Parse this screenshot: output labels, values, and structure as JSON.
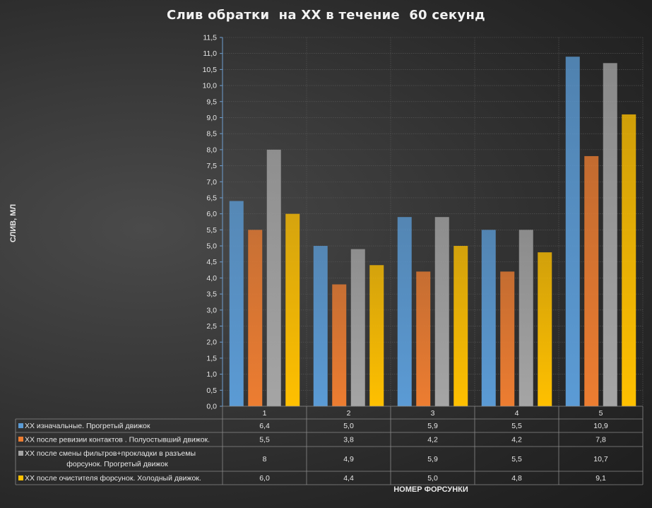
{
  "chart_data": {
    "type": "bar",
    "title": "Слив обратки  на ХХ в течение  60 секунд",
    "xlabel": "НОМЕР ФОРСУНКИ",
    "ylabel": "СЛИВ, МЛ",
    "ylim": [
      0,
      11.5
    ],
    "ystep": 0.5,
    "grid": true,
    "legend_placement": "data-table-left",
    "categories": [
      "1",
      "2",
      "3",
      "4",
      "5"
    ],
    "series": [
      {
        "name": "ХХ изначальные. Прогретый движок",
        "name_lines": [
          "ХХ изначальные. Прогретый движок"
        ],
        "color": "#5b9bd5",
        "values": [
          6.4,
          5.0,
          5.9,
          5.5,
          10.9
        ],
        "labels": [
          "6,4",
          "5,0",
          "5,9",
          "5,5",
          "10,9"
        ]
      },
      {
        "name": "ХХ после ревизии контактов . Полуостывший движок.",
        "name_lines": [
          "ХХ после ревизии контактов . Полуостывший движок."
        ],
        "color": "#ed7d31",
        "values": [
          5.5,
          3.8,
          4.2,
          4.2,
          7.8
        ],
        "labels": [
          "5,5",
          "3,8",
          "4,2",
          "4,2",
          "7,8"
        ]
      },
      {
        "name": "ХХ после смены фильтров+прокладки в разъемы форсунок. Прогретый движок",
        "name_lines": [
          "ХХ после смены фильтров+прокладки в разъемы",
          "форсунок. Прогретый движок"
        ],
        "color": "#a5a5a5",
        "values": [
          8.0,
          4.9,
          5.9,
          5.5,
          10.7
        ],
        "labels": [
          "8",
          "4,9",
          "5,9",
          "5,5",
          "10,7"
        ]
      },
      {
        "name": "ХХ после очистителя форсунок. Холодный движок.",
        "name_lines": [
          "ХХ после очистителя форсунок. Холодный движок."
        ],
        "color": "#ffc000",
        "values": [
          6.0,
          4.4,
          5.0,
          4.8,
          9.1
        ],
        "labels": [
          "6,0",
          "4,4",
          "5,0",
          "4,8",
          "9,1"
        ]
      }
    ],
    "y_ticks": [
      "0,0",
      "0,5",
      "1,0",
      "1,5",
      "2,0",
      "2,5",
      "3,0",
      "3,5",
      "4,0",
      "4,5",
      "5,0",
      "5,5",
      "6,0",
      "6,5",
      "7,0",
      "7,5",
      "8,0",
      "8,5",
      "9,0",
      "9,5",
      "10,0",
      "10,5",
      "11,0",
      "11,5"
    ]
  }
}
